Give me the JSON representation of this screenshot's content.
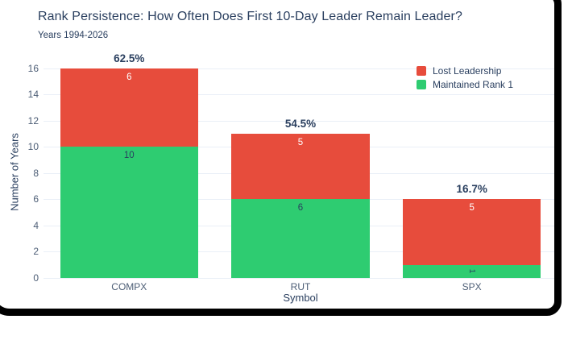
{
  "window": {
    "frame_color": "#000000",
    "background": "#ffffff"
  },
  "header": {
    "title": "Rank Persistence: How Often Does First 10-Day Leader Remain Leader?",
    "subtitle": "Years 1994-2026"
  },
  "chart_data": {
    "type": "bar",
    "stacked": true,
    "title": "Rank Persistence: How Often Does First 10-Day Leader Remain Leader?",
    "subtitle": "Years 1994-2026",
    "xlabel": "Symbol",
    "ylabel": "Number of Years",
    "categories": [
      "COMPX",
      "RUT",
      "SPX"
    ],
    "series": [
      {
        "name": "Maintained Rank 1",
        "color": "#2ecc71",
        "text_color": "#2a3f5f",
        "values": [
          10,
          6,
          1
        ]
      },
      {
        "name": "Lost Leadership",
        "color": "#e74c3c",
        "text_color": "#ffffff",
        "values": [
          6,
          5,
          5
        ]
      }
    ],
    "totals": [
      16,
      11,
      6
    ],
    "percent_labels": [
      "62.5%",
      "54.5%",
      "16.7%"
    ],
    "yticks": [
      0,
      2,
      4,
      6,
      8,
      10,
      12,
      14,
      16
    ],
    "ylim": [
      0,
      16
    ],
    "grid": true,
    "legend": {
      "position": "top-right",
      "items": [
        {
          "label": "Lost Leadership",
          "color": "#e74c3c"
        },
        {
          "label": "Maintained Rank 1",
          "color": "#2ecc71"
        }
      ]
    }
  },
  "style": {
    "title_color": "#2a3f5f",
    "tick_color": "#4c5d75",
    "grid_color": "#e9eff7"
  }
}
